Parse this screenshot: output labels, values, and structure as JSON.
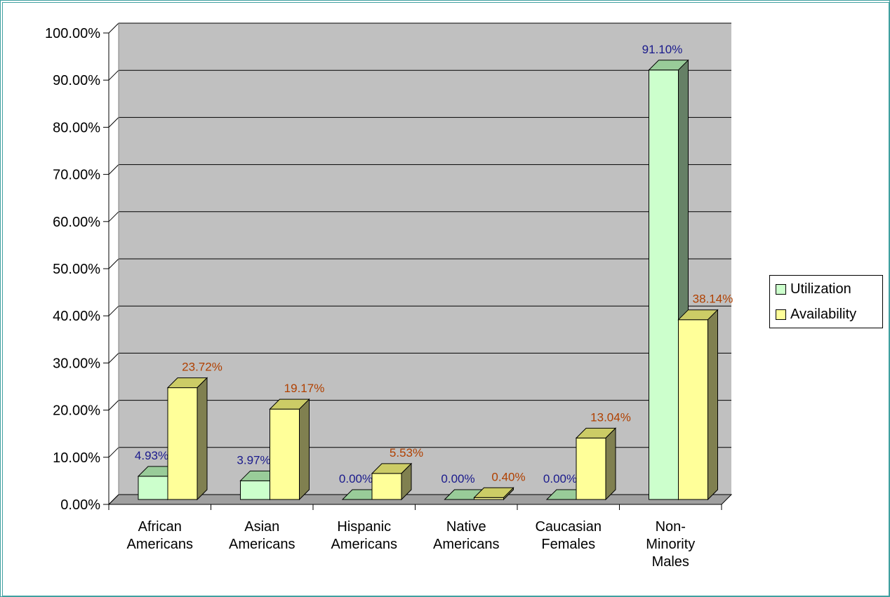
{
  "chart_data": {
    "type": "bar",
    "style": "3d-clustered-column",
    "categories": [
      [
        "African",
        "Americans"
      ],
      [
        "Asian",
        "Americans"
      ],
      [
        "Hispanic",
        "Americans"
      ],
      [
        "Native",
        "Americans"
      ],
      [
        "Caucasian",
        "Females"
      ],
      [
        "Non-",
        "Minority",
        "Males"
      ]
    ],
    "series": [
      {
        "name": "Utilization",
        "values": [
          4.93,
          3.97,
          0.0,
          0.0,
          0.0,
          91.1
        ],
        "labels": [
          "4.93%",
          "3.97%",
          "0.00%",
          "0.00%",
          "0.00%",
          "91.10%"
        ],
        "color": "#ccffcc",
        "side_color": "#668066",
        "label_color": "#1a1a8c"
      },
      {
        "name": "Availability",
        "values": [
          23.72,
          19.17,
          5.53,
          0.4,
          13.04,
          38.14
        ],
        "labels": [
          "23.72%",
          "19.17%",
          "5.53%",
          "0.40%",
          "13.04%",
          "38.14%"
        ],
        "color": "#ffff99",
        "side_color": "#808050",
        "label_color": "#b04000"
      }
    ],
    "ylim": [
      0,
      100
    ],
    "yticks": [
      "0.00%",
      "10.00%",
      "20.00%",
      "30.00%",
      "40.00%",
      "50.00%",
      "60.00%",
      "70.00%",
      "80.00%",
      "90.00%",
      "100.00%"
    ],
    "plot_background": "#c0c0c0",
    "grid": true,
    "legend_position": "right"
  },
  "legend": {
    "utilization": "Utilization",
    "availability": "Availability"
  }
}
